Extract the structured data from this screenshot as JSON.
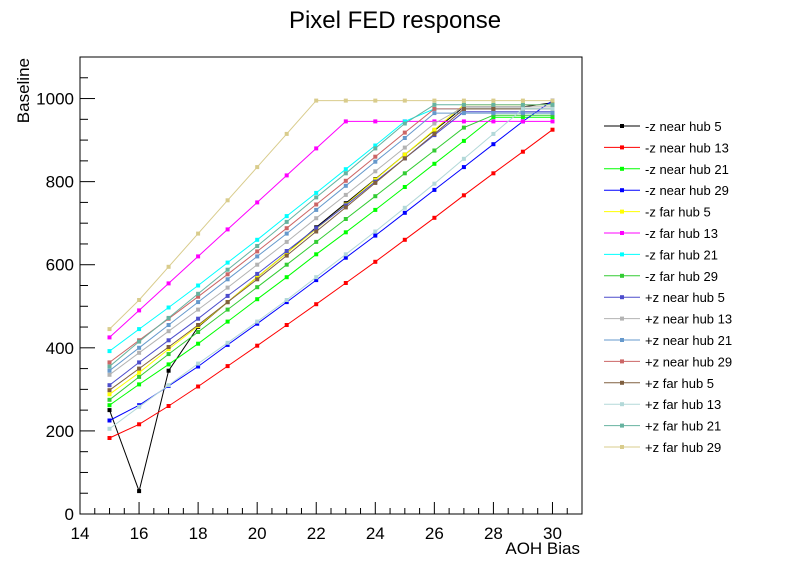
{
  "chart_data": {
    "type": "line",
    "title": "Pixel FED response",
    "xlabel": "AOH Bias",
    "ylabel": "Baseline",
    "xlim": [
      14,
      31
    ],
    "ylim": [
      0,
      1100
    ],
    "x_ticks": [
      "14",
      "16",
      "18",
      "20",
      "22",
      "24",
      "26",
      "28",
      "30"
    ],
    "y_ticks": [
      "0",
      "200",
      "400",
      "600",
      "800",
      "1000"
    ],
    "x": [
      15,
      16,
      17,
      18,
      19,
      20,
      21,
      22,
      23,
      24,
      25,
      26,
      27,
      28,
      29,
      30
    ],
    "grid": false,
    "legend_position": "right",
    "series": [
      {
        "name": "-z near hub 5",
        "color": "#000000",
        "values": [
          250,
          55,
          345,
          450,
          510,
          570,
          628,
          690,
          748,
          806,
          865,
          923,
          980,
          980,
          980,
          990
        ]
      },
      {
        "name": "-z near hub 13",
        "color": "#ff0000",
        "values": [
          183,
          216,
          260,
          307,
          356,
          405,
          455,
          505,
          556,
          607,
          660,
          713,
          767,
          820,
          872,
          925
        ]
      },
      {
        "name": "-z near hub 21",
        "color": "#00ff00",
        "values": [
          262,
          312,
          360,
          410,
          463,
          517,
          570,
          625,
          678,
          732,
          787,
          843,
          898,
          955,
          955,
          955
        ]
      },
      {
        "name": "-z near hub 29",
        "color": "#0000ff",
        "values": [
          225,
          262,
          308,
          355,
          407,
          458,
          510,
          563,
          617,
          670,
          725,
          780,
          835,
          890,
          945,
          995
        ]
      },
      {
        "name": "-z far hub 5",
        "color": "#ffff00",
        "values": [
          288,
          340,
          397,
          452,
          510,
          570,
          628,
          686,
          745,
          805,
          865,
          925,
          985,
          985,
          985,
          985
        ]
      },
      {
        "name": "-z far hub 13",
        "color": "#ff00ff",
        "values": [
          425,
          490,
          555,
          620,
          685,
          750,
          815,
          880,
          945,
          945,
          945,
          945,
          945,
          945,
          945,
          945
        ]
      },
      {
        "name": "-z far hub 21",
        "color": "#00ffff",
        "values": [
          392,
          445,
          497,
          550,
          605,
          660,
          717,
          773,
          830,
          887,
          945,
          975,
          975,
          975,
          975,
          975
        ]
      },
      {
        "name": "-z far hub 29",
        "color": "#33cc33",
        "values": [
          275,
          330,
          385,
          438,
          492,
          546,
          600,
          655,
          710,
          765,
          820,
          875,
          930,
          960,
          960,
          960
        ]
      },
      {
        "name": "+z near hub 5",
        "color": "#4d4dcc",
        "values": [
          310,
          365,
          418,
          470,
          525,
          578,
          633,
          688,
          743,
          800,
          856,
          912,
          968,
          968,
          968,
          968
        ]
      },
      {
        "name": "+z near hub 13",
        "color": "#b3b3b3",
        "values": [
          335,
          388,
          440,
          492,
          545,
          600,
          655,
          712,
          768,
          825,
          882,
          940,
          980,
          980,
          980,
          980
        ]
      },
      {
        "name": "+z near hub 21",
        "color": "#6699cc",
        "values": [
          345,
          400,
          455,
          510,
          565,
          620,
          675,
          732,
          790,
          848,
          905,
          965,
          965,
          965,
          965,
          965
        ]
      },
      {
        "name": "+z near hub 29",
        "color": "#cc6666",
        "values": [
          365,
          418,
          470,
          523,
          577,
          632,
          688,
          745,
          802,
          860,
          918,
          975,
          975,
          975,
          975,
          975
        ]
      },
      {
        "name": "+z far hub 5",
        "color": "#806040",
        "values": [
          298,
          350,
          402,
          455,
          510,
          565,
          622,
          680,
          738,
          797,
          856,
          915,
          975,
          975,
          975,
          975
        ]
      },
      {
        "name": "+z far hub 13",
        "color": "#b3d9d9",
        "values": [
          205,
          258,
          310,
          362,
          412,
          463,
          515,
          570,
          625,
          680,
          737,
          795,
          855,
          915,
          975,
          975
        ]
      },
      {
        "name": "+z far hub 21",
        "color": "#66b3a0",
        "values": [
          355,
          415,
          472,
          530,
          588,
          645,
          703,
          762,
          820,
          880,
          940,
          985,
          985,
          985,
          985,
          985
        ]
      },
      {
        "name": "+z far hub 29",
        "color": "#d9cc8c",
        "values": [
          445,
          515,
          595,
          675,
          755,
          835,
          915,
          995,
          995,
          995,
          995,
          995,
          995,
          995,
          995,
          995
        ]
      }
    ]
  }
}
